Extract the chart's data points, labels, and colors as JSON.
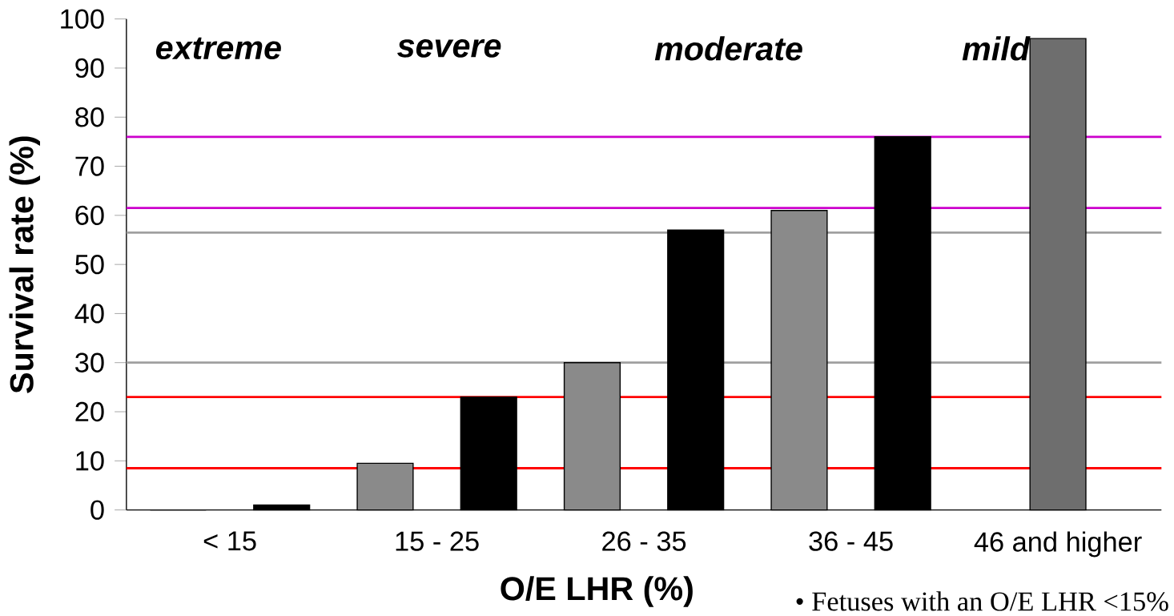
{
  "chart_data": {
    "type": "bar",
    "ylabel": "Survival rate (%)",
    "xlabel": "O/E LHR (%)",
    "categories": [
      "< 15",
      "15 - 25",
      "26 - 35",
      "36 - 45",
      "46 and higher"
    ],
    "series": [
      {
        "colors": [
          "#000000",
          "#8a8a8a",
          "#8a8a8a",
          "#8a8a8a",
          "#6e6e6e"
        ],
        "values": [
          0,
          9.5,
          30,
          61,
          96
        ]
      },
      {
        "color": "#000000",
        "values": [
          1,
          23,
          57,
          76,
          null
        ]
      }
    ],
    "ylim": [
      0,
      100
    ],
    "yticks": [
      0,
      10,
      20,
      30,
      40,
      50,
      60,
      70,
      80,
      90,
      100
    ],
    "ref_lines": [
      {
        "axis": "y",
        "value": 8.5,
        "color": "#ff0000"
      },
      {
        "axis": "y",
        "value": 23,
        "color": "#ff0000"
      },
      {
        "axis": "y",
        "value": 30,
        "color": "#a0a0a0"
      },
      {
        "axis": "y",
        "value": 56.5,
        "color": "#a0a0a0"
      },
      {
        "axis": "y",
        "value": 61.5,
        "color": "#cc00cc"
      },
      {
        "axis": "y",
        "value": 76,
        "color": "#cc00cc"
      }
    ],
    "annotations": [
      "extreme",
      "severe",
      "moderate",
      "mild",
      "• Fetuses with an O/E LHR <15%"
    ]
  }
}
